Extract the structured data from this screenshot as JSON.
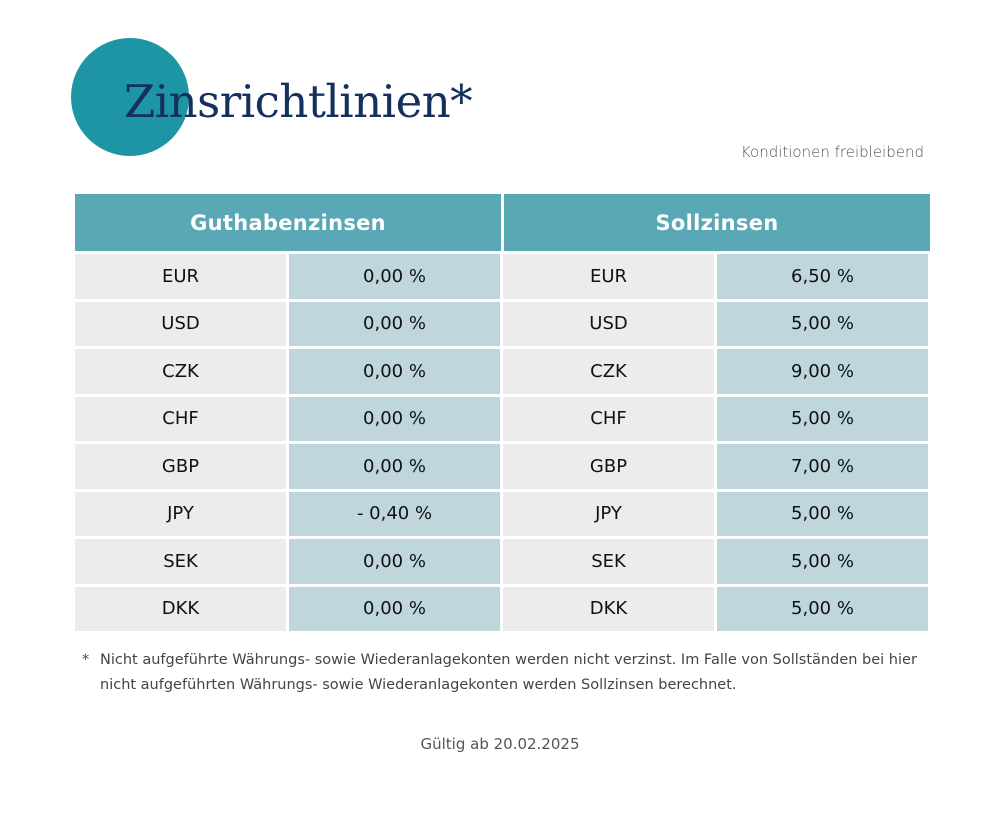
{
  "header": {
    "title": "Zinsrichtlinien*",
    "subtitle": "Konditionen freibleibend"
  },
  "table": {
    "left_header": "Guthabenzinsen",
    "right_header": "Sollzinsen",
    "rows": [
      {
        "cur_l": "EUR",
        "val_l": "0,00 %",
        "cur_r": "EUR",
        "val_r": "6,50 %"
      },
      {
        "cur_l": "USD",
        "val_l": "0,00 %",
        "cur_r": "USD",
        "val_r": "5,00 %"
      },
      {
        "cur_l": "CZK",
        "val_l": "0,00 %",
        "cur_r": "CZK",
        "val_r": "9,00 %"
      },
      {
        "cur_l": "CHF",
        "val_l": "0,00 %",
        "cur_r": "CHF",
        "val_r": "5,00 %"
      },
      {
        "cur_l": "GBP",
        "val_l": "0,00 %",
        "cur_r": "GBP",
        "val_r": "7,00 %"
      },
      {
        "cur_l": "JPY",
        "val_l": "- 0,40 %",
        "cur_r": "JPY",
        "val_r": "5,00 %"
      },
      {
        "cur_l": "SEK",
        "val_l": "0,00 %",
        "cur_r": "SEK",
        "val_r": "5,00 %"
      },
      {
        "cur_l": "DKK",
        "val_l": "0,00 %",
        "cur_r": "DKK",
        "val_r": "5,00 %"
      }
    ]
  },
  "footnote": {
    "marker": "*",
    "text": "Nicht aufgeführte Währungs- sowie Wiederanlagekonten werden nicht verzinst. Im Falle von Sollständen bei hier nicht aufgeführten Währungs- sowie Wiederanlagekonten werden Sollzinsen berechnet."
  },
  "valid_from": "Gültig ab 20.02.2025",
  "colors": {
    "accent_circle": "#1d95a4",
    "title": "#14305e",
    "header_bg": "#5aa8b6",
    "value_bg": "#bfd7dc",
    "currency_bg": "#ececec"
  }
}
